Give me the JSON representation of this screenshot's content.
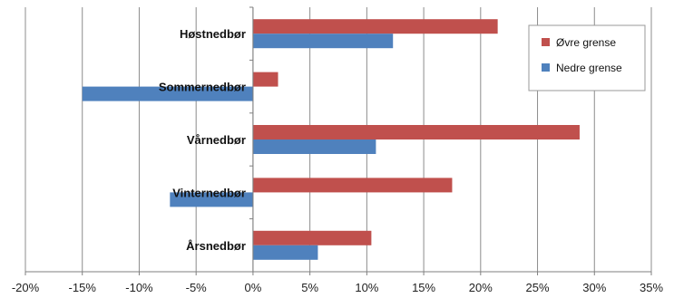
{
  "chart_data": {
    "type": "bar",
    "orientation": "horizontal",
    "categories": [
      "Høstnedbør",
      "Sommernedbør",
      "Vårnedbør",
      "Vinternedbør",
      "Årsnedbør"
    ],
    "series": [
      {
        "name": "Øvre grense",
        "values": [
          21.5,
          2.2,
          28.7,
          17.5,
          10.4
        ],
        "color": "#c0504d"
      },
      {
        "name": "Nedre grense",
        "values": [
          12.3,
          -15.0,
          10.8,
          -7.3,
          5.7
        ],
        "color": "#4f81bd"
      }
    ],
    "x_ticks": [
      "-20%",
      "-15%",
      "-10%",
      "-5%",
      "0%",
      "5%",
      "10%",
      "15%",
      "20%",
      "25%",
      "30%",
      "35%"
    ],
    "xlim": [
      -20,
      35
    ],
    "xtick_step": 5,
    "grid": "vertical",
    "legend_position": "top-right",
    "title": "",
    "xlabel": "",
    "ylabel": ""
  }
}
